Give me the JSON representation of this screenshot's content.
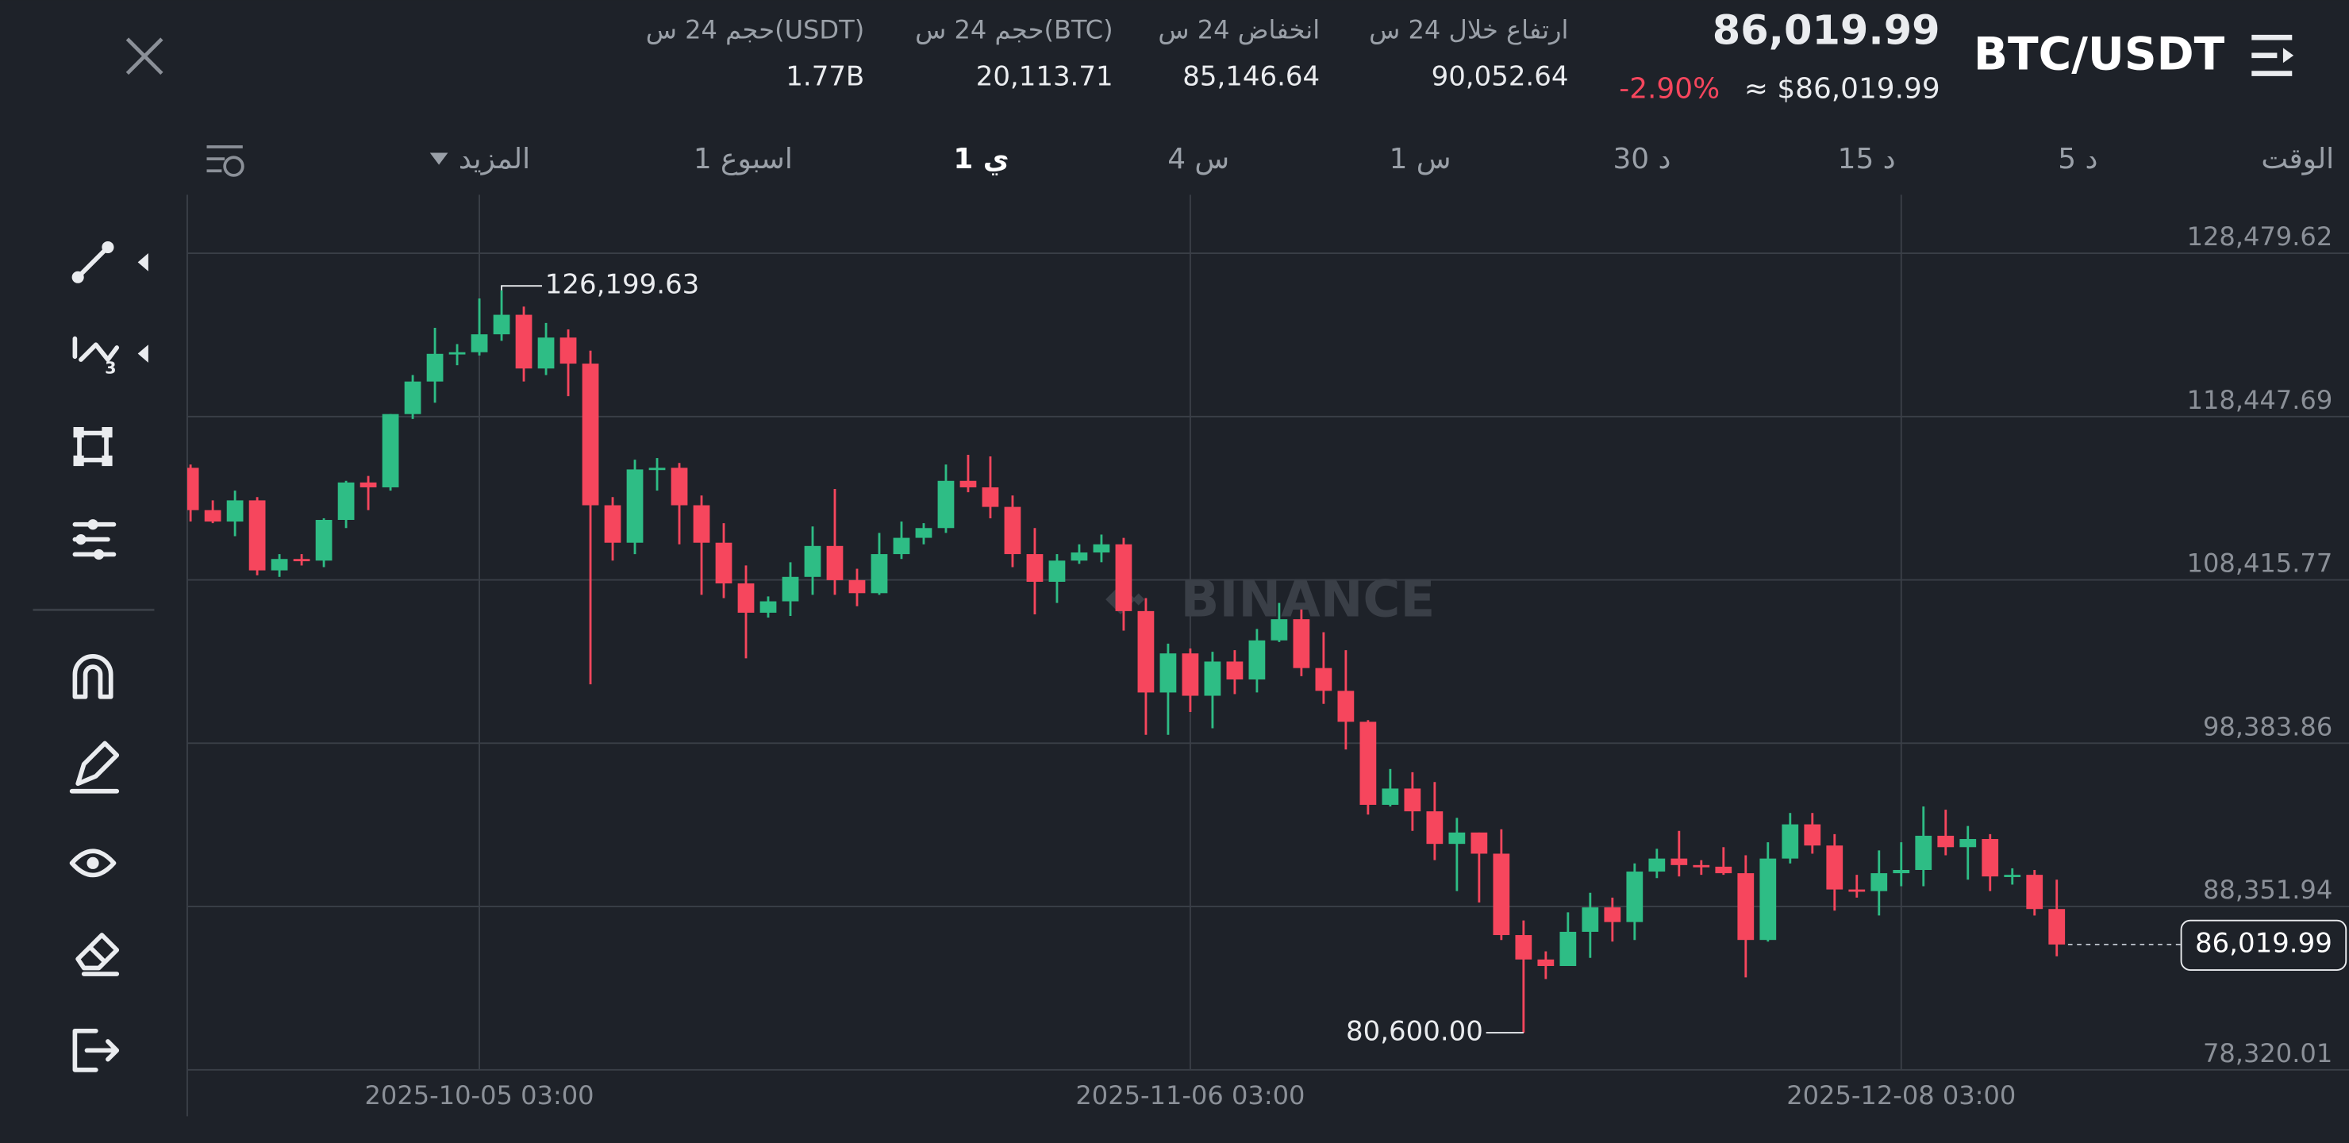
{
  "header": {
    "pair": "BTC/USDT",
    "price": "86,019.99",
    "approx_price": "≈ $86,019.99",
    "change": "-2.90%",
    "stats": [
      {
        "label": "ارتفاع خلال 24 س",
        "value": "90,052.64"
      },
      {
        "label": "انخفاض 24 س",
        "value": "85,146.64"
      },
      {
        "label": "حجم 24 س(BTC)",
        "value": "20,113.71"
      },
      {
        "label": "حجم 24 س(USDT)",
        "value": "1.77B"
      }
    ]
  },
  "timeframes": [
    "الوقت",
    "5 د",
    "15 د",
    "30 د",
    "1 س",
    "4 س",
    "1 ي",
    "1 اسبوع",
    "المزيد"
  ],
  "watermark": "BINANCE",
  "chart_data": {
    "type": "candlestick",
    "categories": [
      null,
      null,
      null,
      null,
      null,
      null,
      null,
      null,
      null,
      null,
      null,
      null,
      null,
      "2025-10-05 03:00",
      null,
      null,
      null,
      null,
      null,
      null,
      null,
      null,
      null,
      null,
      null,
      null,
      null,
      null,
      null,
      null,
      null,
      null,
      null,
      null,
      null,
      null,
      null,
      null,
      null,
      null,
      null,
      null,
      null,
      null,
      null,
      "2025-11-06 03:00",
      null,
      null,
      null,
      null,
      null,
      null,
      null,
      null,
      null,
      null,
      null,
      null,
      null,
      null,
      null,
      null,
      null,
      null,
      null,
      null,
      null,
      null,
      null,
      null,
      null,
      null,
      null,
      null,
      null,
      null,
      null,
      "2025-12-08 03:00",
      null,
      null,
      null,
      null,
      null,
      null,
      null
    ],
    "open": [
      115300,
      112700,
      112000,
      113300,
      109000,
      109700,
      109600,
      112100,
      114400,
      114100,
      118600,
      120600,
      122300,
      122400,
      123500,
      124700,
      121400,
      123300,
      121700,
      113000,
      110700,
      115200,
      115300,
      113000,
      110700,
      108200,
      106400,
      107100,
      108600,
      110500,
      108400,
      107600,
      110000,
      111000,
      111600,
      114500,
      114100,
      112900,
      110000,
      108300,
      109600,
      110100,
      110600,
      106500,
      101500,
      103900,
      101300,
      103400,
      102300,
      104700,
      106000,
      103000,
      101600,
      99700,
      94600,
      95600,
      94200,
      92200,
      92900,
      91600,
      86600,
      85100,
      84700,
      86800,
      88300,
      87400,
      90500,
      91300,
      90900,
      90800,
      90400,
      86300,
      91300,
      93400,
      92100,
      89400,
      89300,
      90400,
      90600,
      92700,
      92000,
      92500,
      90200,
      90300,
      88200
    ],
    "high": [
      115500,
      113300,
      113900,
      113500,
      110000,
      110000,
      112200,
      114500,
      114800,
      118600,
      121000,
      123900,
      122900,
      125700,
      126199.63,
      125200,
      124200,
      123800,
      122500,
      113500,
      115800,
      115900,
      115600,
      113600,
      111900,
      109300,
      107400,
      109500,
      111700,
      114000,
      109100,
      111300,
      112000,
      111900,
      115500,
      116100,
      116000,
      113600,
      111600,
      110000,
      110600,
      111200,
      111000,
      107300,
      104500,
      104200,
      104000,
      104100,
      105400,
      107000,
      106600,
      105200,
      104100,
      99800,
      96800,
      96600,
      96000,
      93800,
      92900,
      93100,
      87500,
      85600,
      88000,
      89200,
      88900,
      91000,
      91900,
      93000,
      91200,
      92000,
      91500,
      92300,
      94100,
      94100,
      92800,
      90300,
      91800,
      92300,
      94500,
      94300,
      93300,
      92800,
      90700,
      90600,
      90000
    ],
    "low": [
      112000,
      111900,
      111100,
      108700,
      108600,
      109300,
      109200,
      111600,
      112700,
      113900,
      118300,
      119300,
      121600,
      122200,
      123100,
      120600,
      121000,
      119700,
      102000,
      109600,
      110000,
      113900,
      110600,
      107500,
      107300,
      103600,
      106100,
      106200,
      107500,
      107500,
      106800,
      107500,
      109700,
      110600,
      111300,
      113800,
      112200,
      109200,
      106300,
      107000,
      109400,
      109500,
      105300,
      98900,
      98900,
      100300,
      99300,
      101400,
      101500,
      104600,
      102500,
      100800,
      98000,
      94000,
      94500,
      93000,
      91200,
      89300,
      88600,
      86300,
      80600,
      83900,
      84700,
      85200,
      86200,
      86300,
      90100,
      90200,
      90300,
      90300,
      84000,
      86200,
      91000,
      91600,
      88100,
      88900,
      87800,
      89600,
      89600,
      91500,
      90000,
      89300,
      89700,
      87800,
      85300
    ],
    "close": [
      112700,
      112000,
      113300,
      109000,
      109700,
      109600,
      112100,
      114400,
      114100,
      118600,
      120600,
      122300,
      122400,
      123500,
      124700,
      121400,
      123300,
      121700,
      113000,
      110700,
      115200,
      115300,
      113000,
      110700,
      108200,
      106400,
      107100,
      108600,
      110500,
      108400,
      107600,
      110000,
      111000,
      111600,
      114500,
      114100,
      112900,
      110000,
      108300,
      109600,
      110100,
      110600,
      106500,
      101500,
      103900,
      101300,
      103400,
      102300,
      104700,
      106000,
      103000,
      101600,
      99700,
      94600,
      95600,
      94200,
      92200,
      92900,
      91600,
      86600,
      85100,
      84700,
      86800,
      88300,
      87400,
      90500,
      91300,
      90900,
      90800,
      90400,
      86300,
      91300,
      93400,
      92100,
      89400,
      89300,
      90400,
      90600,
      92700,
      92000,
      92500,
      90200,
      90300,
      88200,
      86019.99
    ],
    "up_color": "#2ebd85",
    "down_color": "#f6465d",
    "ylim": [
      78320.01,
      132069
    ],
    "yticks": [
      {
        "value": 78320.01,
        "label": "78,320.01"
      },
      {
        "value": 88351.94,
        "label": "88,351.94"
      },
      {
        "value": 98383.86,
        "label": "98,383.86"
      },
      {
        "value": 108415.77,
        "label": "108,415.77"
      },
      {
        "value": 118447.69,
        "label": "118,447.69"
      },
      {
        "value": 128479.62,
        "label": "128,479.62"
      }
    ],
    "grid": true,
    "annotations": [
      {
        "value": 126199.63,
        "label": "126,199.63"
      },
      {
        "value": 80600,
        "label": "80,600.00"
      }
    ],
    "last_price": {
      "value": 86019.99,
      "label": "86,019.99"
    }
  }
}
